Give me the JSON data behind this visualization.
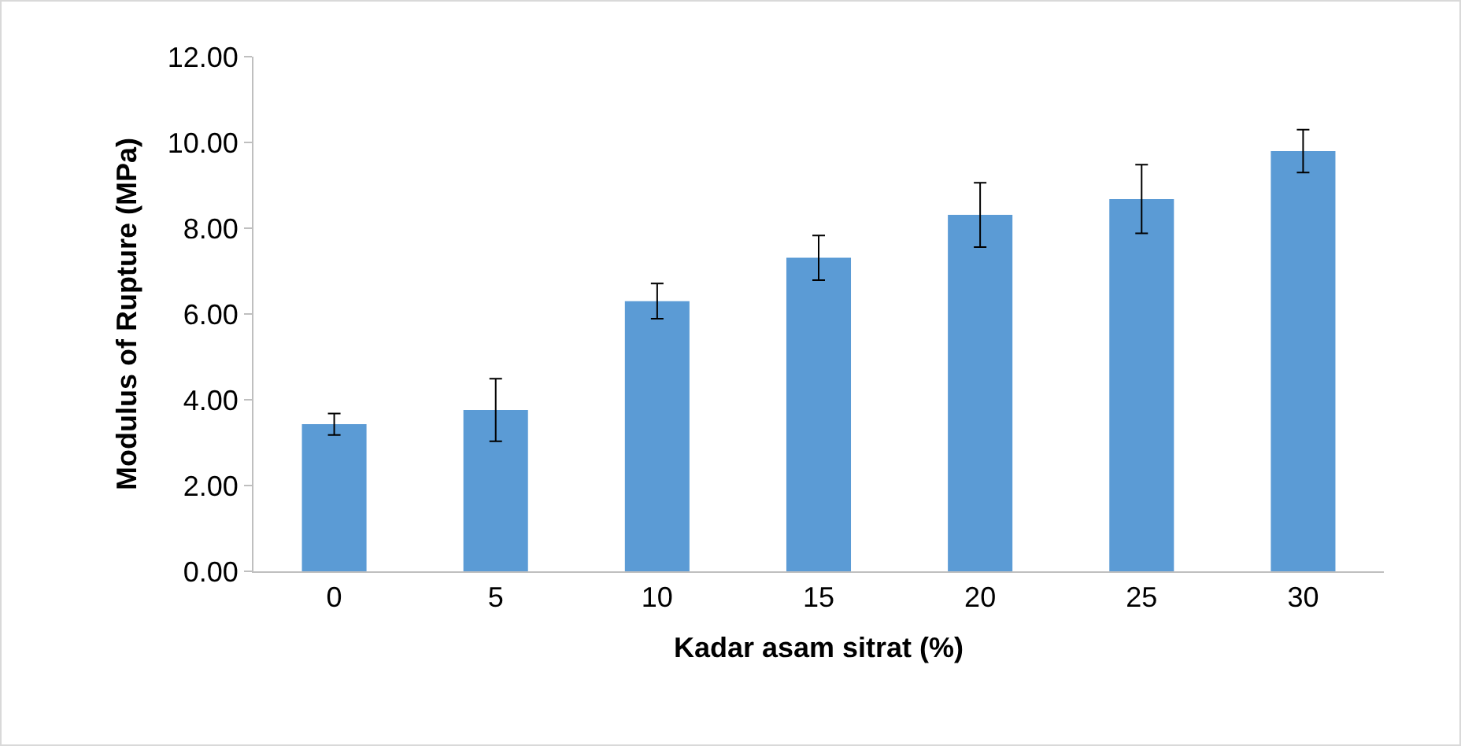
{
  "chart_data": {
    "type": "bar",
    "xlabel": "Kadar asam sitrat (%)",
    "ylabel": "Modulus of Rupture (MPa)",
    "categories": [
      "0",
      "5",
      "10",
      "15",
      "20",
      "25",
      "30"
    ],
    "values": [
      3.43,
      3.76,
      6.3,
      7.31,
      8.31,
      8.68,
      9.8
    ],
    "errors": [
      0.25,
      0.73,
      0.41,
      0.52,
      0.75,
      0.8,
      0.5
    ],
    "color": "#5b9bd5",
    "ylim": [
      0,
      12
    ],
    "yticks": [
      {
        "value": 0,
        "label": "0.00"
      },
      {
        "value": 2,
        "label": "2.00"
      },
      {
        "value": 4,
        "label": "4.00"
      },
      {
        "value": 6,
        "label": "6.00"
      },
      {
        "value": 8,
        "label": "8.00"
      },
      {
        "value": 10,
        "label": "10.00"
      },
      {
        "value": 12,
        "label": "12.00"
      }
    ],
    "grid": false
  }
}
